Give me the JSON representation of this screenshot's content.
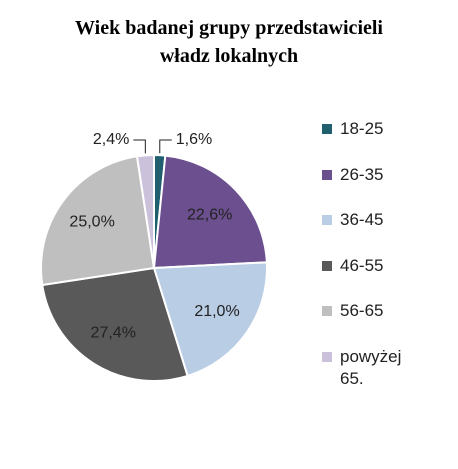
{
  "chart_data": {
    "type": "pie",
    "title": "Wiek badanej grupy przedstawicieli władz lokalnych",
    "categories": [
      "18-25",
      "26-35",
      "36-45",
      "46-55",
      "56-65",
      "powyżej 65."
    ],
    "values": [
      1.6,
      22.6,
      21.0,
      27.4,
      25.0,
      2.4
    ],
    "value_labels": [
      "1,6%",
      "22,6%",
      "21,0%",
      "27,4%",
      "25,0%",
      "2,4%"
    ],
    "colors": [
      "#1f5f6e",
      "#6b4f8e",
      "#b9cde5",
      "#595959",
      "#bfbfbf",
      "#ccc1da"
    ],
    "legend": "right"
  }
}
